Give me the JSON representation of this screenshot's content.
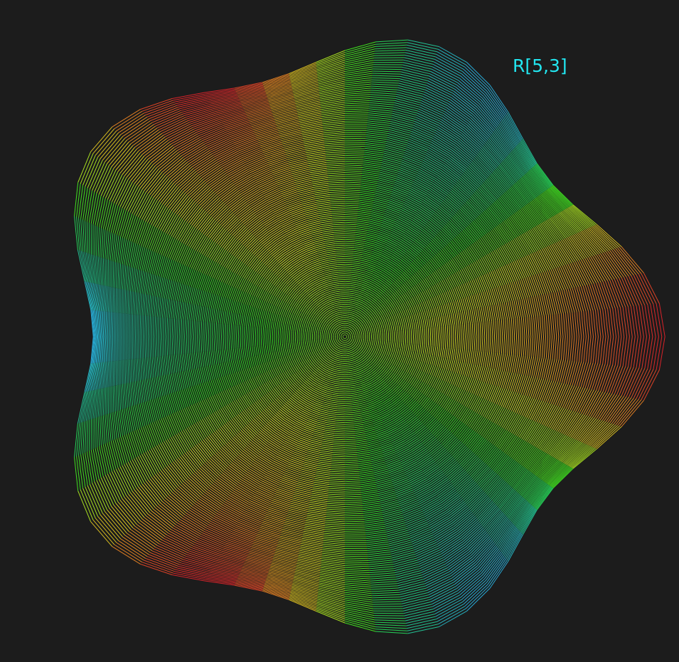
{
  "plot": {
    "label": "R[5,3]",
    "colors": {
      "background": "#1c1c1c",
      "label": "#22e6f0",
      "ring_palette": [
        "#d81f2a",
        "#e0a020",
        "#c8e020",
        "#30e020",
        "#20c878",
        "#28a8d8"
      ]
    }
  }
}
